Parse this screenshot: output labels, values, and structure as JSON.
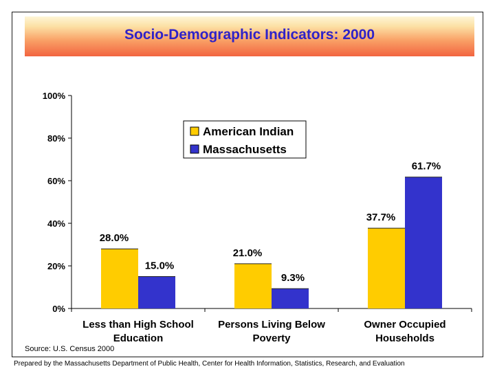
{
  "title": "Socio-Demographic Indicators: 2000",
  "source": "Source: U.S. Census 2000",
  "footer": "Prepared by the Massachusetts Department of Public Health, Center for Health Information, Statistics, Research, and Evaluation",
  "chart_data": {
    "type": "bar",
    "categories": [
      [
        "Less than High School",
        "Education"
      ],
      [
        "Persons Living Below",
        "Poverty"
      ],
      [
        "Owner Occupied",
        "Households"
      ]
    ],
    "series": [
      {
        "name": "American Indian",
        "values": [
          28.0,
          21.0,
          37.7
        ],
        "labels": [
          "28.0%",
          "21.0%",
          "37.7%"
        ],
        "color": "#ffcc00"
      },
      {
        "name": "Massachusetts",
        "values": [
          15.0,
          9.3,
          61.7
        ],
        "labels": [
          "15.0%",
          "9.3%",
          "61.7%"
        ],
        "color": "#3333cc"
      }
    ],
    "yticks": [
      "0%",
      "20%",
      "40%",
      "60%",
      "80%",
      "100%"
    ],
    "ylim": [
      0,
      100
    ],
    "grid": false,
    "legend_position": "center"
  }
}
